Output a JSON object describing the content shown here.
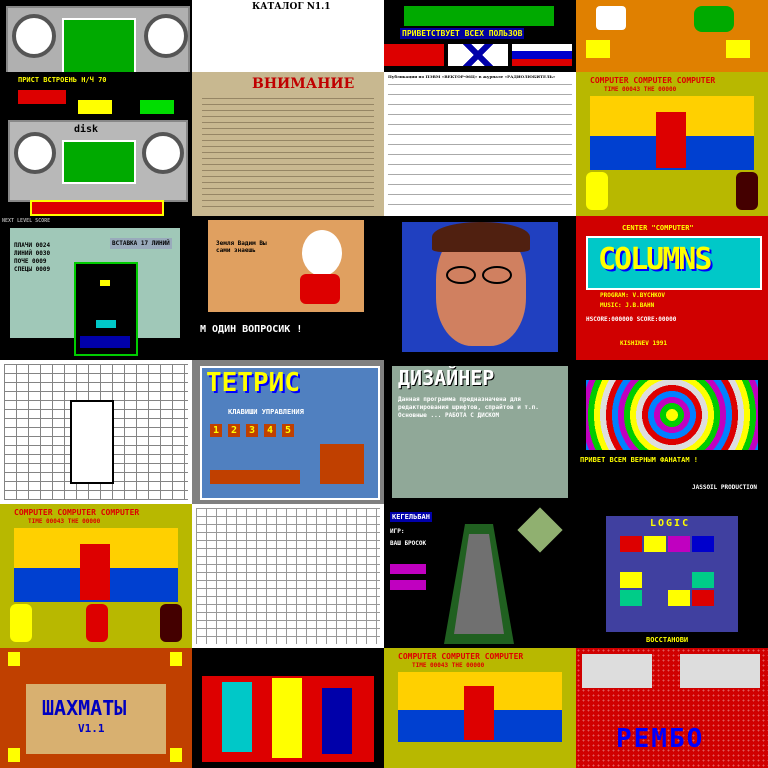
{
  "tiles": [
    {
      "id": "r0c0",
      "caption": ""
    },
    {
      "id": "r0c1",
      "caption": "КАТАЛОГ N1.1"
    },
    {
      "id": "r0c2",
      "caption": "ПРИВЕТСТВУЕТ ВСЕХ ПОЛЬЗОВ"
    },
    {
      "id": "r0c3",
      "caption": ""
    },
    {
      "id": "r1c0",
      "caption": "ПРИСТ ВСТРОЕНЬ Н/Ч 70",
      "disk": "disk"
    },
    {
      "id": "r1c1",
      "caption": "ВНИМАНИЕ"
    },
    {
      "id": "r1c2",
      "caption": "Публикации по ПЭВМ «ВЕКТОР-06Ц» в журнале «РАДИОЛЮБИТЕЛЬ»"
    },
    {
      "id": "r1c3",
      "caption": "COMPUTER COMPUTER COMPUTER",
      "score": "TIME 00043  THE 00000"
    },
    {
      "id": "r2c0",
      "caption": "NEXT  LEVEL  SCORE",
      "stats": [
        "ПЛАЧИ 0024",
        "ЛИНИЙ 0030",
        "ПОЧЕ 0009",
        "СПЕЦЫ 0009"
      ],
      "right": "ВСТАВКА 17 ЛИНИЙ"
    },
    {
      "id": "r2c1",
      "caption": "М ОДИН ВОПРОСИК !",
      "bubble": "Земля Вадим Вы сами знаешь"
    },
    {
      "id": "r2c2",
      "caption": ""
    },
    {
      "id": "r2c3",
      "caption": "CENTER \"COMPUTER\"",
      "title": "COLUMNS",
      "lines": [
        "PROGRAM: V.BYCHKOV",
        "MUSIC:   J.B.BAHN",
        "HSCORE:000000  SCORE:00000",
        "KISHINEV   1991"
      ]
    },
    {
      "id": "r3c0",
      "caption": ""
    },
    {
      "id": "r3c1",
      "caption": "ТЕТРИС",
      "sub": "КЛАВИШИ УПРАВЛЕНИЯ",
      "keys": [
        "1",
        "2",
        "3",
        "4",
        "5"
      ]
    },
    {
      "id": "r3c2",
      "caption": "ДИЗАЙНЕР",
      "body": "Данная программа предназначена для редактирования шрифтов, спрайтов и т.п. Основные ... РАБОТА С ДИСКОМ"
    },
    {
      "id": "r3c3",
      "caption": "ПРИВЕТ ВСЕМ ВЕРНЫМ ФАНАТАМ !",
      "credit": "JASSOIL PRODUCTION"
    },
    {
      "id": "r4c0",
      "caption": "COMPUTER COMPUTER COMPUTER",
      "score": "TIME 00043  THE 00000"
    },
    {
      "id": "r4c1",
      "caption": ""
    },
    {
      "id": "r4c2",
      "caption": "КЕГЕЛЬБАН",
      "labels": [
        "ИГР:",
        "ВАШ БРОСОК"
      ]
    },
    {
      "id": "r4c3",
      "caption": "LOGIC",
      "footer": "ВОССТАНОВИ"
    },
    {
      "id": "r5c0",
      "caption": "ШАХМАТЫ",
      "version": "V1.1"
    },
    {
      "id": "r5c1",
      "caption": ""
    },
    {
      "id": "r5c2",
      "caption": "COMPUTER COMPUTER COMPUTER",
      "score": "TIME 00043  THE 00000"
    },
    {
      "id": "r5c3",
      "caption": "РЕМБО"
    }
  ],
  "colors": {
    "olive": "#b8b800",
    "black": "#000000",
    "red": "#d00000",
    "green": "#00a000",
    "yellow": "#ffff00",
    "blue": "#0000c0",
    "cyan": "#00c8c8",
    "magenta": "#c000c0",
    "white": "#ffffff",
    "sand": "#d8d0b8"
  }
}
